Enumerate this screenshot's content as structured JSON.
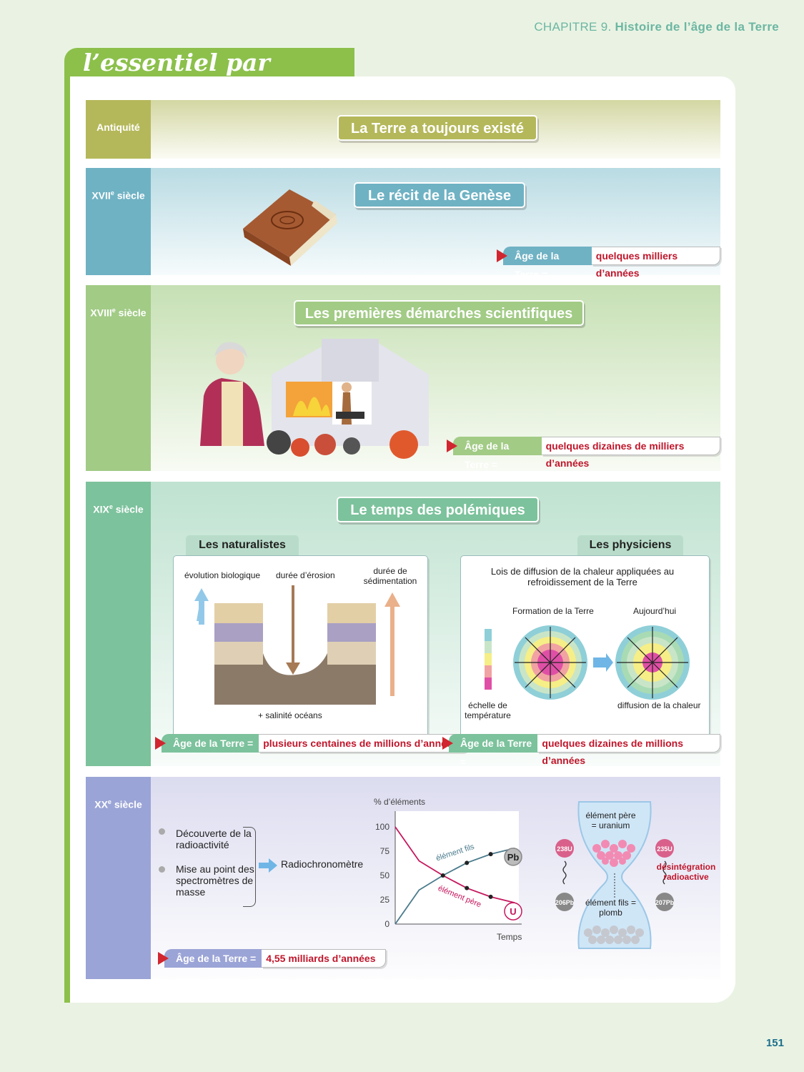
{
  "header": {
    "chapter_prefix": "CHAPITRE 9.",
    "chapter_title": "Histoire de l’âge de la Terre",
    "section_title": "l’essentiel par l’image",
    "page_number": "151"
  },
  "eras": {
    "antiquite": {
      "label": "Antiquité",
      "title": "La Terre a toujours existé"
    },
    "xvii": {
      "label": "XVIIe siècle",
      "title": "Le récit de la Genèse",
      "age_key": "Âge de la Terre =",
      "age_value": "quelques milliers d’années"
    },
    "xviii": {
      "label": "XVIIIe siècle",
      "title": "Les premières démarches scientifiques",
      "age_key": "Âge de la Terre =",
      "age_value": "quelques dizaines de milliers d’années"
    },
    "xix": {
      "label": "XIXe siècle",
      "title": "Le temps des polémiques",
      "naturalists": {
        "tab": "Les naturalistes",
        "evolution": "évolution biologique",
        "erosion": "durée d’érosion",
        "sedimentation": "durée de sédimentation",
        "salinity": "+ salinité océans",
        "age_key": "Âge de la Terre =",
        "age_value": "plusieurs centaines de millions d’années"
      },
      "physicists": {
        "tab": "Les physiciens",
        "heading": "Lois de diffusion de la chaleur appliquées au refroidissement de la Terre",
        "formation": "Formation de la Terre",
        "today": "Aujourd’hui",
        "scale": "échelle de température",
        "diffusion": "diffusion de la chaleur",
        "age_key": "Âge de la Terre =",
        "age_value": "quelques dizaines de millions d’années"
      }
    },
    "xx": {
      "label": "XXe siècle",
      "bullet1": "Découverte de la radioactivité",
      "bullet2": "Mise au point des spectromètres de masse",
      "result": "Radiochronomètre",
      "age_key": "Âge de la Terre =",
      "age_value": "4,55 milliards d’années",
      "hourglass": {
        "father": "élément père = uranium",
        "son": "élément fils = plomb",
        "decay": "désintégration radioactive",
        "u238": "238U",
        "u235": "235U",
        "pb206": "206Pb",
        "pb207": "207Pb"
      }
    }
  },
  "chart_data": {
    "type": "line",
    "ylabel": "% d’éléments",
    "xlabel": "Temps",
    "yticks": [
      0,
      25,
      50,
      75,
      100
    ],
    "ylim": [
      0,
      100
    ],
    "series": [
      {
        "name": "élément fils",
        "badge": "Pb",
        "x": [
          0,
          1,
          2,
          3,
          4,
          5
        ],
        "values": [
          0,
          35,
          50,
          63,
          72,
          78
        ]
      },
      {
        "name": "élément père",
        "badge": "U",
        "x": [
          0,
          1,
          2,
          3,
          4,
          5
        ],
        "values": [
          100,
          65,
          50,
          37,
          28,
          22
        ]
      }
    ],
    "grid": false,
    "colors": {
      "son": "#4a7a8c",
      "father": "#c5175d"
    }
  },
  "colors": {
    "antiquite": "#b5b85a",
    "xvii": "#6fb2c4",
    "xviii": "#a2cb86",
    "xix": "#7cc29c",
    "xx": "#9ba4d6",
    "accent_red": "#c0162b",
    "green": "#8cc04b"
  }
}
